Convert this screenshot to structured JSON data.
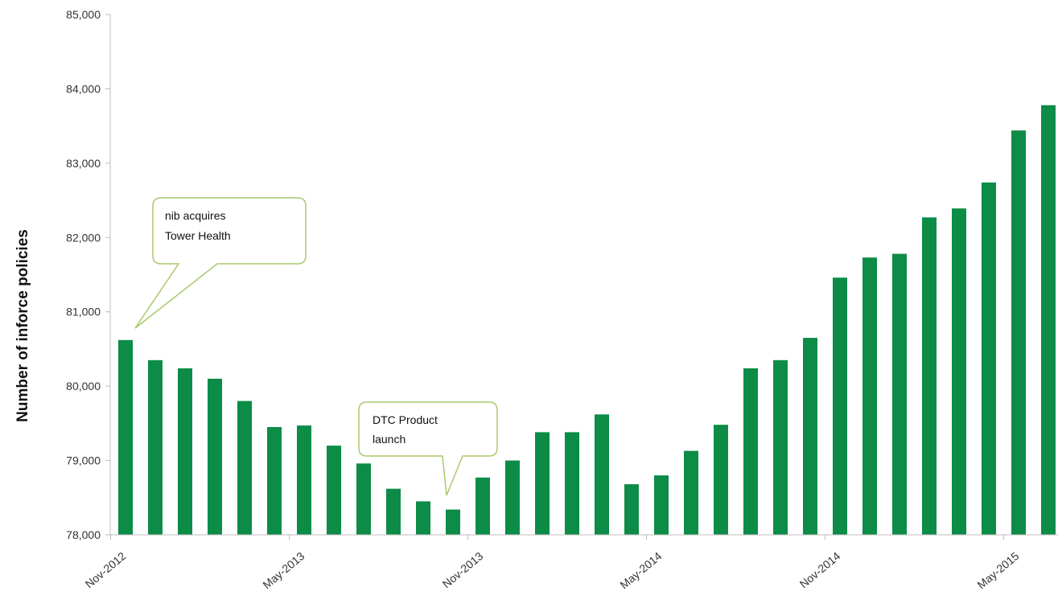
{
  "chart_data": {
    "type": "bar",
    "title": "",
    "xlabel": "",
    "ylabel": "Number of inforce policies",
    "ylim": [
      78000,
      85000
    ],
    "yticks": [
      "78,000",
      "79,000",
      "80,000",
      "81,000",
      "82,000",
      "83,000",
      "84,000",
      "85,000"
    ],
    "xtick_labels": [
      "Nov-2012",
      "May-2013",
      "Nov-2013",
      "May-2014",
      "Nov-2014",
      "May-2015"
    ],
    "categories": [
      "Nov-2012",
      "Dec-2012",
      "Jan-2013",
      "Feb-2013",
      "Mar-2013",
      "Apr-2013",
      "May-2013",
      "Jun-2013",
      "Jul-2013",
      "Aug-2013",
      "Sep-2013",
      "Oct-2013",
      "Nov-2013",
      "Dec-2013",
      "Jan-2014",
      "Feb-2014",
      "Mar-2014",
      "Apr-2014",
      "May-2014",
      "Jun-2014",
      "Jul-2014",
      "Aug-2014",
      "Sep-2014",
      "Oct-2014",
      "Nov-2014",
      "Dec-2014",
      "Jan-2015",
      "Feb-2015",
      "Mar-2015",
      "Apr-2015",
      "May-2015",
      "Jun-2015"
    ],
    "values": [
      80620,
      80350,
      80240,
      80100,
      79800,
      79450,
      79470,
      79200,
      78960,
      78620,
      78450,
      78340,
      78770,
      79000,
      79380,
      79380,
      79620,
      78680,
      78800,
      79130,
      79480,
      80240,
      80350,
      80650,
      81460,
      81730,
      81780,
      82270,
      82390,
      82740,
      83440,
      83780
    ],
    "bar_color": "#0c8c47",
    "grid": false,
    "legend": "none",
    "annotations": [
      {
        "lines": [
          "nib acquires",
          "Tower Health"
        ],
        "category": "Nov-2012"
      },
      {
        "lines": [
          "DTC Product",
          "launch"
        ],
        "category": "Oct-2013"
      }
    ]
  }
}
